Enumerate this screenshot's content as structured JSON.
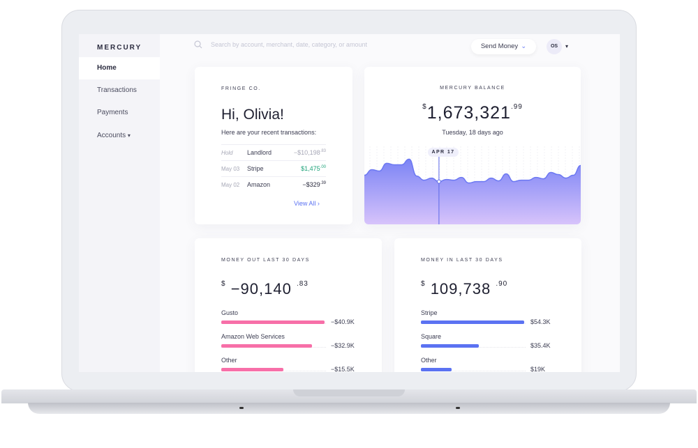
{
  "sidebar": {
    "logo": "MERCURY",
    "items": [
      {
        "label": "Home",
        "active": true
      },
      {
        "label": "Transactions"
      },
      {
        "label": "Payments"
      },
      {
        "label": "Accounts",
        "caret": "▾"
      }
    ]
  },
  "header": {
    "search_placeholder": "Search by account, merchant, date, category, or amount",
    "send_money": "Send Money",
    "avatar_initials": "OS",
    "avatar_caret": "▾"
  },
  "welcome": {
    "company": "FRINGE CO.",
    "greeting": "Hi, Olivia!",
    "subtitle": "Here are your recent transactions:",
    "transactions": [
      {
        "date": "Hold",
        "merchant": "Landlord",
        "amount": "−$10,198",
        "cents": ".83",
        "color": "#a6a7b6"
      },
      {
        "date": "May 03",
        "merchant": "Stripe",
        "amount": "$1,475",
        "cents": ".00",
        "color": "#1fa37a"
      },
      {
        "date": "May 02",
        "merchant": "Amazon",
        "amount": "−$329",
        "cents": ".39",
        "color": "#2b2c3f"
      }
    ],
    "view_all": "View All",
    "view_all_icon": "chevron-right"
  },
  "balance": {
    "label": "MERCURY BALANCE",
    "currency": "$",
    "amount": "1,673,321",
    "cents": ".99",
    "date": "Tuesday, 18 days ago",
    "marker_label": "APR 17",
    "chart_data": {
      "type": "area",
      "values": [
        55,
        63,
        61,
        72,
        70,
        70,
        78,
        54,
        48,
        51,
        46,
        49,
        48,
        52,
        44,
        46,
        46,
        51,
        47,
        57,
        46,
        48,
        48,
        52,
        50,
        59,
        56,
        51,
        55,
        69
      ],
      "marker_index": 10,
      "gradient": [
        "#7b84f5",
        "#d7c3fb"
      ]
    }
  },
  "money_out": {
    "label": "MONEY OUT LAST 30 DAYS",
    "currency": "$",
    "amount": "−90,140",
    "cents": ".83",
    "color": "#f76fa8",
    "items": [
      {
        "name": "Gusto",
        "value": "−$40.9K",
        "fraction": 1.0
      },
      {
        "name": "Amazon Web Services",
        "value": "−$32.9K",
        "fraction": 0.88
      },
      {
        "name": "Other",
        "value": "−$15.5K",
        "fraction": 0.6
      }
    ]
  },
  "money_in": {
    "label": "MONEY IN LAST 30 DAYS",
    "currency": "$",
    "amount": "109,738",
    "cents": ".90",
    "color": "#5b72f2",
    "items": [
      {
        "name": "Stripe",
        "value": "$54.3K",
        "fraction": 1.0
      },
      {
        "name": "Square",
        "value": "$35.4K",
        "fraction": 0.56
      },
      {
        "name": "Other",
        "value": "$19K",
        "fraction": 0.3
      }
    ]
  }
}
